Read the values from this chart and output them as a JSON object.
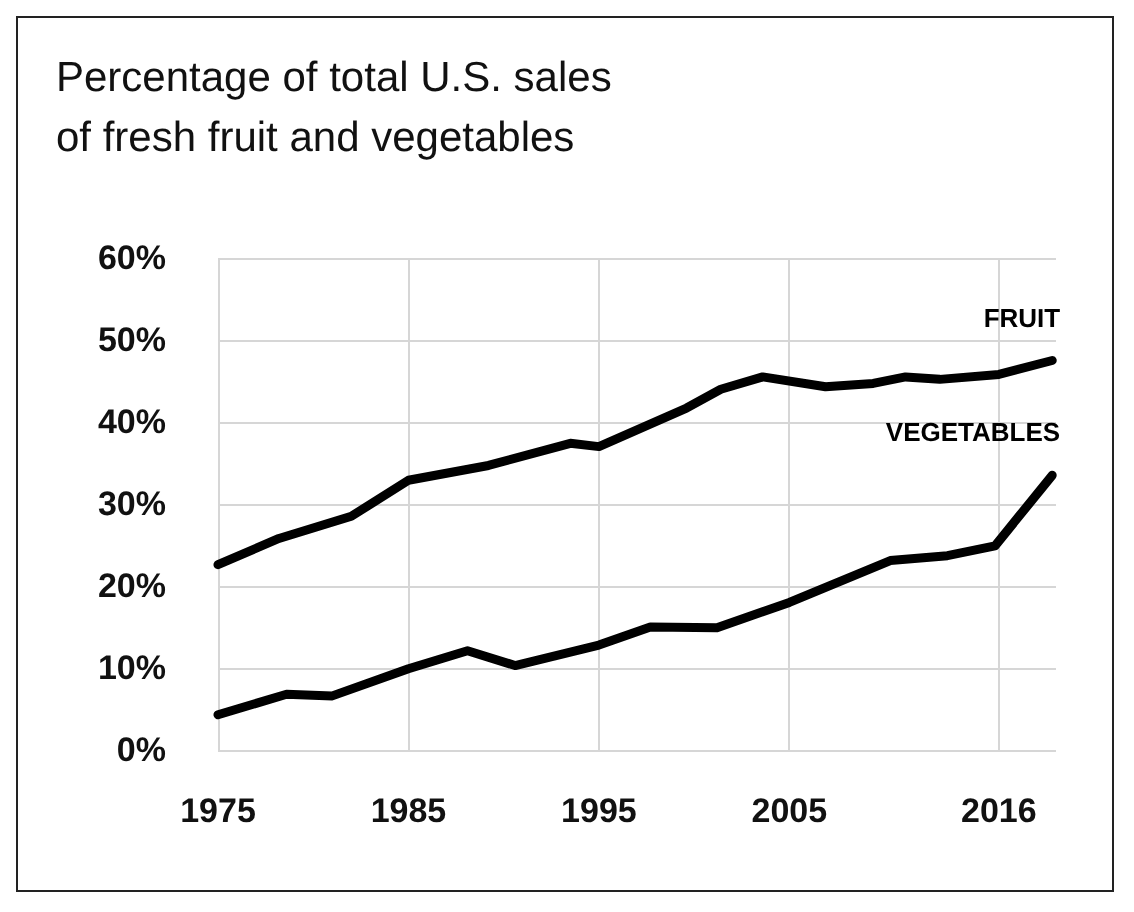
{
  "chart_data": {
    "type": "line",
    "title": "Percentage of total U.S. sales\nof fresh fruit and vegetables",
    "series": [
      {
        "name": "FRUIT",
        "color": "#000000",
        "x": [
          1975,
          1978.2,
          1982,
          1985,
          1989.2,
          1993.5,
          1995,
          1999.6,
          2001.4,
          2003.6,
          2006.9,
          2009.4,
          2011.1,
          2012.9,
          2016,
          2018.8
        ],
        "values": [
          22.6,
          25.8,
          28.5,
          32.9,
          34.7,
          37.4,
          37,
          41.7,
          44,
          45.5,
          44.3,
          44.7,
          45.5,
          45.2,
          45.8,
          47.5
        ]
      },
      {
        "name": "VEGETABLES",
        "color": "#000000",
        "x": [
          1975,
          1978.6,
          1981,
          1985,
          1988.1,
          1990.6,
          1995,
          1997.7,
          2001.2,
          2005,
          2010.3,
          2013.3,
          2015.8,
          2018.8
        ],
        "values": [
          4.3,
          6.8,
          6.6,
          9.9,
          12.1,
          10.3,
          12.8,
          15,
          14.9,
          18,
          23.1,
          23.7,
          24.9,
          33.5
        ]
      }
    ],
    "xlim": [
      1975,
      2019
    ],
    "xticks": [
      1975,
      1985,
      1995,
      2005,
      2016
    ],
    "ylim": [
      0,
      60
    ],
    "yticks": [
      {
        "value": 0,
        "label": "0%"
      },
      {
        "value": 10,
        "label": "10%"
      },
      {
        "value": 20,
        "label": "20%"
      },
      {
        "value": 30,
        "label": "30%"
      },
      {
        "value": 40,
        "label": "40%"
      },
      {
        "value": 50,
        "label": "50%"
      },
      {
        "value": 60,
        "label": "60%"
      }
    ],
    "grid": true,
    "legend": false,
    "marker": "none",
    "line_style": "solid"
  }
}
